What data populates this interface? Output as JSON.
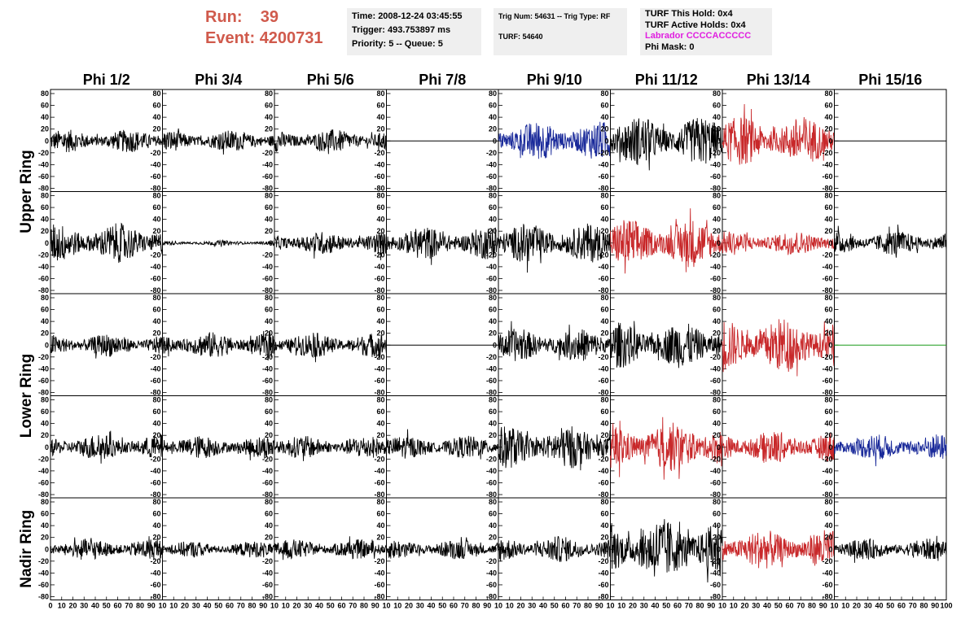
{
  "header": {
    "run_label": "Run:",
    "run_value": "39",
    "event_label": "Event:",
    "event_value": "4200731",
    "time": "Time: 2008-12-24 03:45:55",
    "trigger": "Trigger: 493.753897 ms",
    "priority": "Priority: 5 -- Queue: 5",
    "trig_num": "Trig Num: 54631 -- Trig Type: RF",
    "turf": "TURF: 54640",
    "turf_hold": "TURF This Hold: 0x4",
    "turf_active": "TURF Active Holds: 0x4",
    "labrador": "Labrador CCCCACCCCC",
    "phi_mask": "Phi Mask: 0"
  },
  "colors": {
    "background": "#ffffff",
    "info_box": "#efefef",
    "run_text": "#d05a4c",
    "labrador_text": "#e020e0",
    "trace_black": "#000000",
    "trace_red": "#c8282a",
    "trace_blue": "#1a2a9a",
    "trace_green": "#1a9a1a"
  },
  "chart_data": {
    "type": "line",
    "columns": [
      "Phi 1/2",
      "Phi 3/4",
      "Phi 5/6",
      "Phi 7/8",
      "Phi 9/10",
      "Phi 11/12",
      "Phi 13/14",
      "Phi 15/16"
    ],
    "row_groups": [
      {
        "label": "Upper Ring",
        "rows": [
          0,
          1
        ]
      },
      {
        "label": "Lower Ring",
        "rows": [
          2,
          3
        ]
      },
      {
        "label": "Nadir Ring",
        "rows": [
          4
        ]
      }
    ],
    "xlim": [
      0,
      100
    ],
    "ylim": [
      -80,
      80
    ],
    "y_ticks": [
      80,
      60,
      40,
      20,
      0,
      -20,
      -40,
      -60,
      -80
    ],
    "x_ticks": [
      0,
      10,
      20,
      30,
      40,
      50,
      60,
      70,
      80,
      90,
      100
    ],
    "x_tick_text": [
      "0",
      "10",
      "20",
      "30",
      "40",
      "50",
      "60",
      "70",
      "80",
      "90",
      "10",
      "10",
      "20",
      "30",
      "40",
      "50",
      "60",
      "70",
      "80",
      "90",
      "10",
      "10",
      "20",
      "30",
      "40",
      "50",
      "60",
      "70",
      "80",
      "90",
      "10",
      "10",
      "20",
      "30",
      "40",
      "50",
      "60",
      "70",
      "80",
      "90",
      "10",
      "10",
      "20",
      "30",
      "40",
      "50",
      "60",
      "70",
      "80",
      "90",
      "10",
      "10",
      "20",
      "30",
      "40",
      "50",
      "60",
      "70",
      "80",
      "90",
      "10",
      "10",
      "20",
      "30",
      "40",
      "50",
      "60",
      "70",
      "80",
      "90",
      "10",
      "10",
      "20",
      "30",
      "40",
      "50",
      "60",
      "70",
      "80",
      "90",
      "100"
    ],
    "grid": false,
    "channels": [
      [
        {
          "amp": 14,
          "color": "black"
        },
        {
          "amp": 13,
          "color": "black"
        },
        {
          "amp": 14,
          "color": "black"
        },
        {
          "amp": 0,
          "color": "black"
        },
        {
          "amp": 24,
          "color": "blue"
        },
        {
          "amp": 30,
          "color": "black"
        },
        {
          "amp": 30,
          "color": "red"
        },
        {
          "amp": 0,
          "color": "black"
        }
      ],
      [
        {
          "amp": 24,
          "color": "black"
        },
        {
          "amp": 3,
          "color": "black"
        },
        {
          "amp": 14,
          "color": "black"
        },
        {
          "amp": 20,
          "color": "black"
        },
        {
          "amp": 24,
          "color": "black"
        },
        {
          "amp": 30,
          "color": "red"
        },
        {
          "amp": 15,
          "color": "red"
        },
        {
          "amp": 15,
          "color": "black"
        }
      ],
      [
        {
          "amp": 14,
          "color": "black"
        },
        {
          "amp": 16,
          "color": "black"
        },
        {
          "amp": 15,
          "color": "black"
        },
        {
          "amp": 0,
          "color": "black"
        },
        {
          "amp": 20,
          "color": "black"
        },
        {
          "amp": 28,
          "color": "black"
        },
        {
          "amp": 34,
          "color": "red"
        },
        {
          "amp": 0,
          "color": "green"
        }
      ],
      [
        {
          "amp": 16,
          "color": "black"
        },
        {
          "amp": 14,
          "color": "black"
        },
        {
          "amp": 14,
          "color": "black"
        },
        {
          "amp": 14,
          "color": "black"
        },
        {
          "amp": 26,
          "color": "black"
        },
        {
          "amp": 30,
          "color": "red"
        },
        {
          "amp": 20,
          "color": "red"
        },
        {
          "amp": 16,
          "color": "blue"
        }
      ],
      [
        {
          "amp": 13,
          "color": "black"
        },
        {
          "amp": 10,
          "color": "black"
        },
        {
          "amp": 12,
          "color": "black"
        },
        {
          "amp": 12,
          "color": "black"
        },
        {
          "amp": 16,
          "color": "black"
        },
        {
          "amp": 38,
          "color": "black"
        },
        {
          "amp": 24,
          "color": "red"
        },
        {
          "amp": 13,
          "color": "black"
        }
      ]
    ]
  }
}
